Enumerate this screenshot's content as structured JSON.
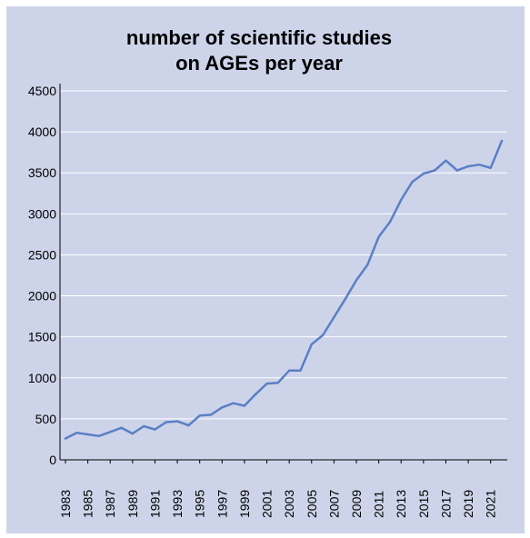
{
  "chart_data": {
    "type": "line",
    "title_lines": [
      "number of scientific studies",
      "on AGEs per year"
    ],
    "xlabel": "",
    "ylabel": "",
    "ylim": [
      0,
      4500
    ],
    "yticks": [
      0,
      500,
      1000,
      1500,
      2000,
      2500,
      3000,
      3500,
      4000,
      4500
    ],
    "xtick_labels": [
      "1983",
      "1985",
      "1987",
      "1989",
      "1991",
      "1993",
      "1995",
      "1997",
      "1999",
      "2001",
      "2003",
      "2005",
      "2007",
      "2009",
      "2011",
      "2013",
      "2015",
      "2017",
      "2019",
      "2021"
    ],
    "grid": true,
    "colors": {
      "line": "#5b7fc4",
      "grid": "#ffffff",
      "background": "#cdd4ea"
    },
    "series": [
      {
        "x": [
          1983,
          1984,
          1985,
          1986,
          1987,
          1988,
          1989,
          1990,
          1991,
          1992,
          1993,
          1994,
          1995,
          1996,
          1997,
          1998,
          1999,
          2000,
          2001,
          2002,
          2003,
          2004,
          2005,
          2006,
          2007,
          2008,
          2009,
          2010,
          2011,
          2012,
          2013,
          2014,
          2015,
          2016,
          2017,
          2018,
          2019,
          2020,
          2021,
          2022
        ],
        "values": [
          260,
          330,
          310,
          290,
          340,
          390,
          320,
          410,
          370,
          460,
          470,
          420,
          540,
          550,
          640,
          690,
          660,
          800,
          930,
          940,
          1090,
          1090,
          1410,
          1520,
          1740,
          1960,
          2190,
          2380,
          2720,
          2900,
          3170,
          3390,
          3490,
          3530,
          3650,
          3530,
          3580,
          3600,
          3560,
          3890
        ]
      }
    ]
  }
}
